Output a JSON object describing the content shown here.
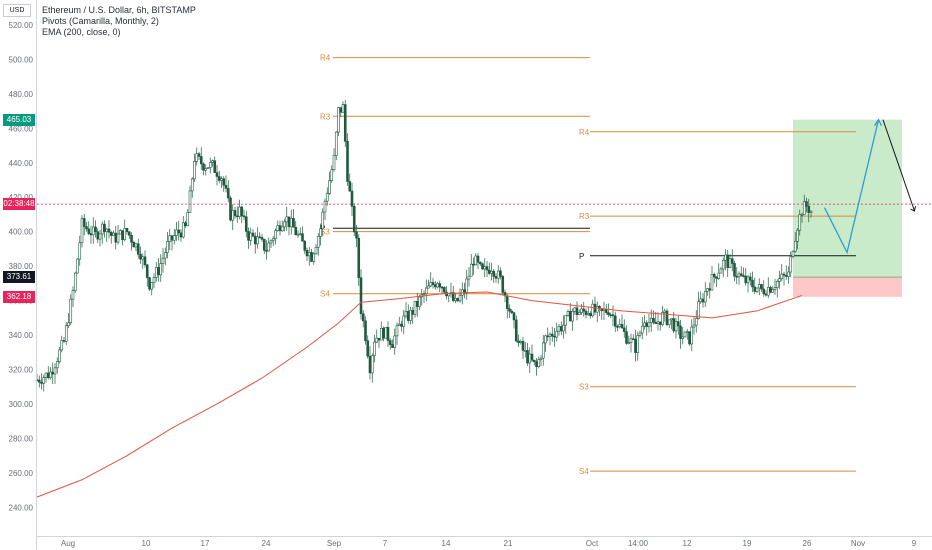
{
  "legend": {
    "line1": "Ethereum / U.S. Dollar, 6h, BITSTAMP",
    "line2": "Pivots (Camarilla, Monthly, 2)",
    "line3": "EMA (200, close, 0)"
  },
  "currency_badge": "USD",
  "price_tags": {
    "target": {
      "label": "465.03",
      "color": "#089981"
    },
    "timer": {
      "label": "02:38:48",
      "color": "#e8245a"
    },
    "entry": {
      "label": "373.61",
      "color": "#131722"
    },
    "stop": {
      "label": "362.18",
      "color": "#e8245a"
    }
  },
  "colors": {
    "pivot_line": "#d98b3a",
    "pivot_P": "#131722",
    "ema": "#e5533f",
    "candle": "#1f5a3f",
    "projection_blue": "#2e9bd6",
    "projection_black": "#131722",
    "target_zone": "#bfe7bf",
    "stop_zone": "#ffc8c8"
  },
  "chart_data": {
    "type": "candlestick",
    "symbol": "Ethereum / U.S. Dollar, 6h, BITSTAMP",
    "y_axis": {
      "ticks": [
        "240.00",
        "260.00",
        "280.00",
        "300.00",
        "320.00",
        "340.00",
        "360.00",
        "380.00",
        "400.00",
        "420.00",
        "440.00",
        "460.00",
        "480.00",
        "500.00",
        "520.00"
      ],
      "ylim": [
        228,
        531
      ]
    },
    "x_axis": {
      "ticks": [
        "Aug",
        "10",
        "17",
        "24",
        "Sep",
        "7",
        "14",
        "21",
        "Oct",
        "14:00",
        "12",
        "19",
        "26",
        "Nov",
        "9"
      ]
    },
    "pivots_sep": [
      {
        "label": "R4",
        "value": 501
      },
      {
        "label": "R3",
        "value": 467
      },
      {
        "label": "P",
        "value": 402
      },
      {
        "label": "S3",
        "value": 400
      },
      {
        "label": "S4",
        "value": 364
      }
    ],
    "pivots_oct": [
      {
        "label": "R4",
        "value": 458
      },
      {
        "label": "R3",
        "value": 409
      },
      {
        "label": "P",
        "value": 386
      },
      {
        "label": "S3",
        "value": 310
      },
      {
        "label": "S4",
        "value": 261
      }
    ],
    "price_path": [
      [
        0,
        314
      ],
      [
        3,
        318
      ],
      [
        6,
        336
      ],
      [
        8,
        365
      ],
      [
        10,
        404
      ],
      [
        13,
        398
      ],
      [
        15,
        404
      ],
      [
        17,
        396
      ],
      [
        20,
        400
      ],
      [
        23,
        388
      ],
      [
        25,
        370
      ],
      [
        27,
        378
      ],
      [
        29,
        392
      ],
      [
        31,
        399
      ],
      [
        33,
        402
      ],
      [
        34,
        420
      ],
      [
        35,
        443
      ],
      [
        37,
        439
      ],
      [
        39,
        438
      ],
      [
        41,
        432
      ],
      [
        42,
        422
      ],
      [
        43,
        410
      ],
      [
        45,
        412
      ],
      [
        47,
        398
      ],
      [
        49,
        395
      ],
      [
        51,
        390
      ],
      [
        53,
        400
      ],
      [
        55,
        409
      ],
      [
        57,
        402
      ],
      [
        59,
        393
      ],
      [
        61,
        386
      ],
      [
        63,
        402
      ],
      [
        64,
        418
      ],
      [
        65,
        430
      ],
      [
        66,
        442
      ],
      [
        67,
        470
      ],
      [
        68,
        472
      ],
      [
        69,
        433
      ],
      [
        70,
        411
      ],
      [
        71,
        393
      ],
      [
        72,
        355
      ],
      [
        73,
        340
      ],
      [
        74,
        322
      ],
      [
        75,
        338
      ],
      [
        77,
        342
      ],
      [
        79,
        336
      ],
      [
        81,
        348
      ],
      [
        83,
        352
      ],
      [
        85,
        360
      ],
      [
        87,
        367
      ],
      [
        89,
        372
      ],
      [
        91,
        366
      ],
      [
        93,
        358
      ],
      [
        95,
        366
      ],
      [
        97,
        384
      ],
      [
        99,
        376
      ],
      [
        101,
        380
      ],
      [
        103,
        372
      ],
      [
        105,
        355
      ],
      [
        107,
        335
      ],
      [
        109,
        327
      ],
      [
        111,
        321
      ],
      [
        113,
        338
      ],
      [
        115,
        342
      ],
      [
        117,
        346
      ],
      [
        119,
        354
      ],
      [
        121,
        353
      ],
      [
        123,
        355
      ],
      [
        125,
        352
      ],
      [
        127,
        355
      ],
      [
        129,
        347
      ],
      [
        131,
        339
      ],
      [
        133,
        333
      ],
      [
        135,
        350
      ],
      [
        137,
        345
      ],
      [
        139,
        351
      ],
      [
        141,
        348
      ],
      [
        143,
        340
      ],
      [
        145,
        338
      ],
      [
        147,
        356
      ],
      [
        149,
        368
      ],
      [
        151,
        376
      ],
      [
        153,
        384
      ],
      [
        155,
        377
      ],
      [
        157,
        372
      ],
      [
        159,
        369
      ],
      [
        161,
        366
      ],
      [
        163,
        368
      ],
      [
        165,
        372
      ],
      [
        167,
        375
      ],
      [
        168,
        392
      ],
      [
        169,
        404
      ],
      [
        170,
        413
      ],
      [
        171,
        415
      ],
      [
        172,
        412
      ]
    ],
    "ema_200": [
      [
        0,
        246
      ],
      [
        10,
        256
      ],
      [
        20,
        270
      ],
      [
        30,
        286
      ],
      [
        40,
        300
      ],
      [
        50,
        315
      ],
      [
        60,
        333
      ],
      [
        67,
        347
      ],
      [
        72,
        359
      ],
      [
        80,
        361
      ],
      [
        90,
        364
      ],
      [
        100,
        365
      ],
      [
        110,
        360
      ],
      [
        120,
        357
      ],
      [
        130,
        354
      ],
      [
        140,
        352
      ],
      [
        150,
        350
      ],
      [
        160,
        354
      ],
      [
        170,
        363
      ]
    ],
    "position": {
      "target_price": 465.03,
      "entry_price": 373.61,
      "stop_price": 362.18
    },
    "projection": {
      "blue_path": [
        [
          175,
          414
        ],
        [
          180,
          388
        ],
        [
          187,
          465
        ]
      ],
      "black_path": [
        [
          188,
          465
        ],
        [
          195,
          412
        ]
      ]
    },
    "current_price_line": 416
  }
}
